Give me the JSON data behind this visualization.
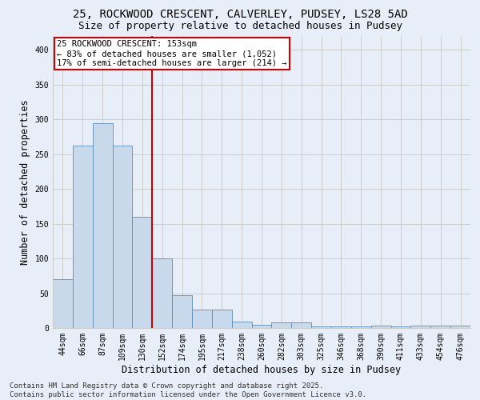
{
  "title_line1": "25, ROCKWOOD CRESCENT, CALVERLEY, PUDSEY, LS28 5AD",
  "title_line2": "Size of property relative to detached houses in Pudsey",
  "xlabel": "Distribution of detached houses by size in Pudsey",
  "ylabel": "Number of detached properties",
  "categories": [
    "44sqm",
    "66sqm",
    "87sqm",
    "109sqm",
    "130sqm",
    "152sqm",
    "174sqm",
    "195sqm",
    "217sqm",
    "238sqm",
    "260sqm",
    "282sqm",
    "303sqm",
    "325sqm",
    "346sqm",
    "368sqm",
    "390sqm",
    "411sqm",
    "433sqm",
    "454sqm",
    "476sqm"
  ],
  "values": [
    70,
    262,
    295,
    262,
    160,
    100,
    47,
    27,
    27,
    9,
    5,
    8,
    8,
    2,
    2,
    2,
    3,
    2,
    3,
    3,
    3
  ],
  "bar_color": "#c9d9ec",
  "bar_edge_color": "#5b8db8",
  "vline_index": 5,
  "annotation_text": "25 ROCKWOOD CRESCENT: 153sqm\n← 83% of detached houses are smaller (1,052)\n17% of semi-detached houses are larger (214) →",
  "annotation_box_color": "#ffffff",
  "annotation_border_color": "#cc0000",
  "vline_color": "#cc0000",
  "ylim": [
    0,
    420
  ],
  "yticks": [
    0,
    50,
    100,
    150,
    200,
    250,
    300,
    350,
    400
  ],
  "grid_color": "#cccccc",
  "background_color": "#e8eef7",
  "footer_line1": "Contains HM Land Registry data © Crown copyright and database right 2025.",
  "footer_line2": "Contains public sector information licensed under the Open Government Licence v3.0.",
  "title_fontsize": 10,
  "subtitle_fontsize": 9,
  "axis_label_fontsize": 8.5,
  "tick_fontsize": 7,
  "annotation_fontsize": 7.5,
  "footer_fontsize": 6.5
}
